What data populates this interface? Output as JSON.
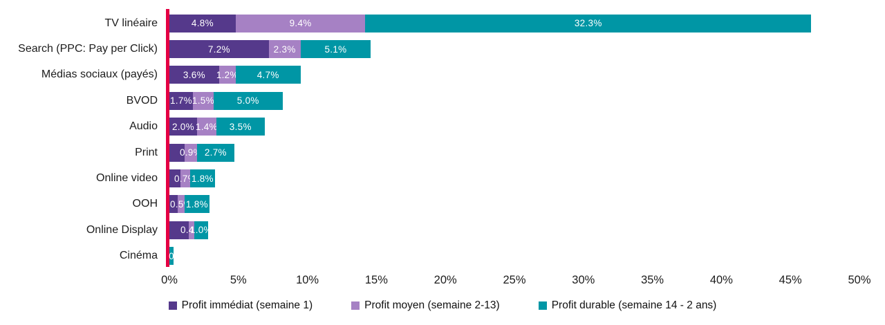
{
  "chart_data": {
    "type": "bar",
    "orientation": "horizontal",
    "stacked": true,
    "title": "",
    "xlabel": "",
    "ylabel": "",
    "xlim": [
      0,
      50
    ],
    "x_ticks": [
      "0%",
      "5%",
      "10%",
      "15%",
      "20%",
      "25%",
      "30%",
      "35%",
      "40%",
      "45%",
      "50%"
    ],
    "grid": false,
    "legend_position": "bottom",
    "baseline_color": "#E40043",
    "categories": [
      "TV linéaire",
      "Search (PPC: Pay per Click)",
      "Médias sociaux (payés)",
      "BVOD",
      "Audio",
      "Print",
      "Online video",
      "OOH",
      "Online Display",
      "Cinéma"
    ],
    "series": [
      {
        "name": "Profit immédiat (semaine 1)",
        "color": "#55398B",
        "values": [
          4.8,
          7.2,
          3.6,
          1.7,
          2.0,
          1.1,
          0.8,
          0.6,
          1.4,
          0.0
        ],
        "labels": [
          "4.8%",
          "7.2%",
          "3.6%",
          "1.7%",
          "2.0%",
          "",
          "",
          "",
          "",
          ""
        ]
      },
      {
        "name": "Profit moyen (semaine 2-13)",
        "color": "#A681C4",
        "values": [
          9.4,
          2.3,
          1.2,
          1.5,
          1.4,
          0.9,
          0.7,
          0.5,
          0.4,
          0.0
        ],
        "labels": [
          "9.4%",
          "2.3%",
          "1.2%",
          "1.5%",
          "1.4%",
          "0.9%",
          "0.7%",
          "0.5%",
          "0.4%",
          ""
        ]
      },
      {
        "name": "Profit durable (semaine 14 - 2 ans)",
        "color": "#0096A5",
        "values": [
          32.3,
          5.1,
          4.7,
          5.0,
          3.5,
          2.7,
          1.8,
          1.8,
          1.0,
          0.3
        ],
        "labels": [
          "32.3%",
          "5.1%",
          "4.7%",
          "5.0%",
          "3.5%",
          "2.7%",
          "1.8%",
          "1.8%",
          "1.0%",
          "0"
        ]
      }
    ]
  }
}
